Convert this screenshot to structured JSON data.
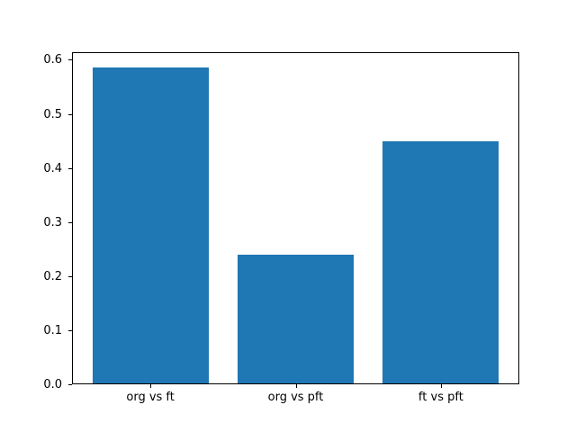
{
  "chart_data": {
    "type": "bar",
    "categories": [
      "org vs ft",
      "org vs pft",
      "ft vs pft"
    ],
    "values": [
      0.585,
      0.24,
      0.449
    ],
    "title": "",
    "xlabel": "",
    "ylabel": "",
    "ylim": [
      0,
      0.614
    ],
    "yticks": [
      0.0,
      0.1,
      0.2,
      0.3,
      0.4,
      0.5,
      0.6
    ],
    "ytick_labels": [
      "0.0",
      "0.1",
      "0.2",
      "0.3",
      "0.4",
      "0.5",
      "0.6"
    ],
    "bar_color": "#1f77b4",
    "bar_width_ratio": 0.8,
    "grid": false,
    "legend": null,
    "background_color": "#ffffff",
    "spine_color": "#000000",
    "text_color": "#000000"
  }
}
